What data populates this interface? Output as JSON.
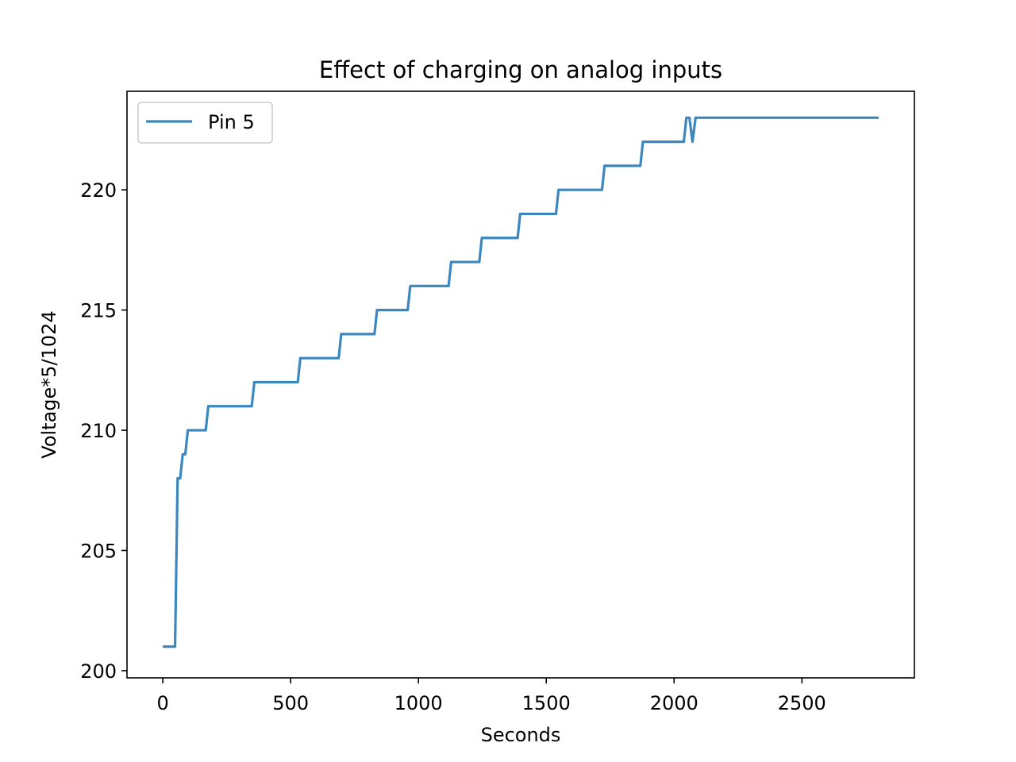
{
  "chart_data": {
    "type": "line",
    "title": "Effect of charging on analog inputs",
    "xlabel": "Seconds",
    "ylabel": "Voltage*5/1024",
    "xlim": [
      -140,
      2940
    ],
    "ylim": [
      199.7,
      224.1
    ],
    "xticks": [
      0,
      500,
      1000,
      1500,
      2000,
      2500
    ],
    "yticks": [
      200,
      205,
      210,
      215,
      220
    ],
    "grid": false,
    "legend_position": "top-left",
    "series": [
      {
        "name": "Pin 5",
        "color": "#3c87be",
        "x": [
          0,
          48,
          58,
          68,
          78,
          88,
          98,
          168,
          178,
          348,
          358,
          528,
          538,
          688,
          698,
          828,
          838,
          958,
          968,
          1118,
          1128,
          1238,
          1248,
          1388,
          1398,
          1538,
          1548,
          1718,
          1728,
          1868,
          1878,
          2038,
          2048,
          2060,
          2072,
          2084,
          2800
        ],
        "y": [
          201,
          201,
          208,
          208,
          209,
          209,
          210,
          210,
          211,
          211,
          212,
          212,
          213,
          213,
          214,
          214,
          215,
          215,
          216,
          216,
          217,
          217,
          218,
          218,
          219,
          219,
          220,
          220,
          221,
          221,
          222,
          222,
          223,
          223,
          222,
          223,
          223
        ]
      }
    ]
  }
}
